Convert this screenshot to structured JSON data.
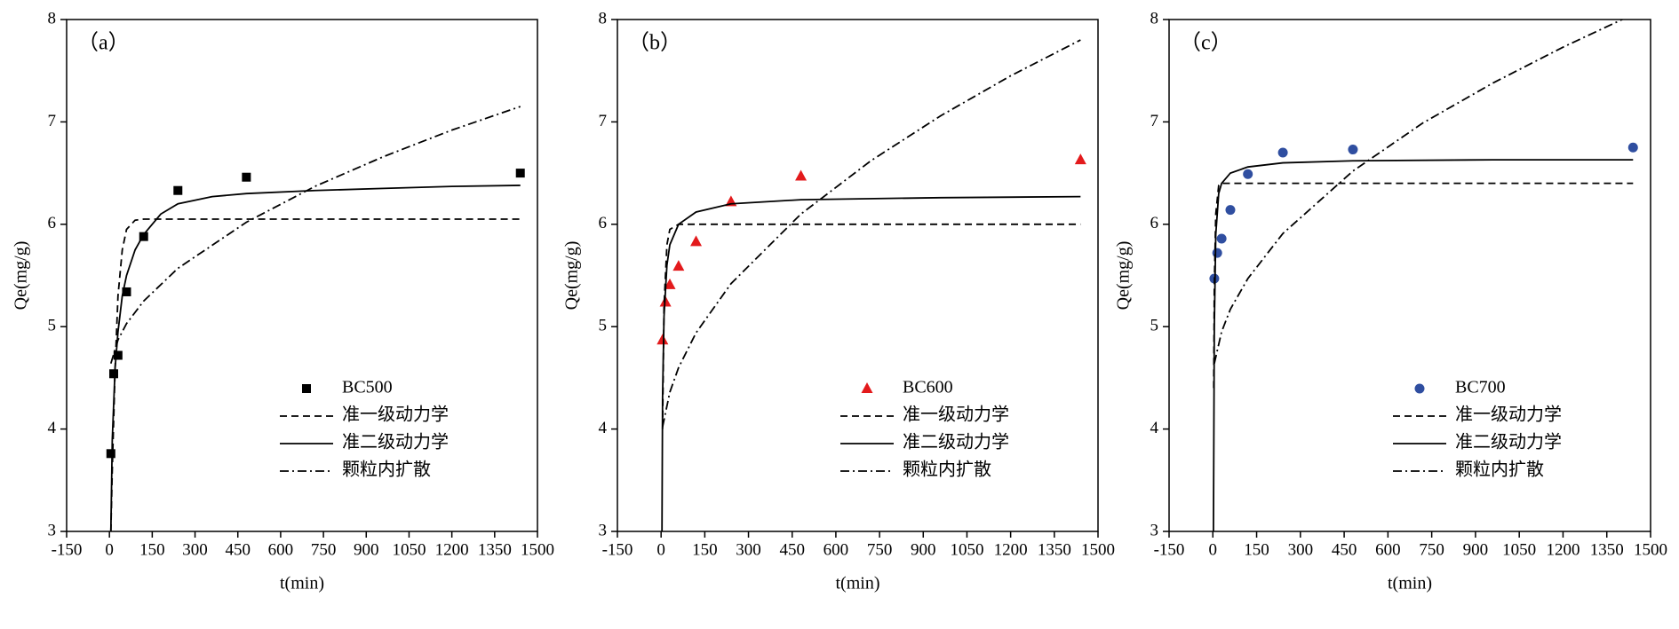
{
  "chart_data": [
    {
      "type": "scatter",
      "annotation": "（a）",
      "x_label": "t(min)",
      "y_label": "Qe(mg/g)",
      "xlim": [
        -150,
        1500
      ],
      "xticks": [
        -150,
        0,
        150,
        300,
        450,
        600,
        750,
        900,
        1050,
        1200,
        1350,
        1500
      ],
      "ylim": [
        3,
        8
      ],
      "yticks": [
        3,
        4,
        5,
        6,
        7,
        8
      ],
      "legend": "lower right",
      "series": [
        {
          "name": "BC500",
          "type": "scatter",
          "marker": "square",
          "color": "#000000",
          "x": [
            5,
            15,
            30,
            60,
            120,
            240,
            480,
            1440
          ],
          "values": [
            3.76,
            4.54,
            4.72,
            5.34,
            5.88,
            6.33,
            6.46,
            6.5
          ]
        },
        {
          "name": "准一级动力学",
          "type": "line",
          "dash": "dashed",
          "color": "#000000",
          "x": [
            5,
            10,
            20,
            30,
            45,
            60,
            90,
            120,
            480,
            960,
            1440
          ],
          "values": [
            3.0,
            3.6,
            4.6,
            5.3,
            5.75,
            5.95,
            6.04,
            6.05,
            6.05,
            6.05,
            6.05
          ]
        },
        {
          "name": "准二级动力学",
          "type": "line",
          "dash": "solid",
          "color": "#000000",
          "x": [
            5,
            10,
            20,
            30,
            45,
            60,
            90,
            120,
            180,
            240,
            360,
            480,
            720,
            960,
            1200,
            1440
          ],
          "values": [
            3.0,
            3.9,
            4.6,
            4.95,
            5.3,
            5.5,
            5.75,
            5.9,
            6.1,
            6.2,
            6.27,
            6.3,
            6.33,
            6.35,
            6.37,
            6.38
          ]
        },
        {
          "name": "颗粒内扩散",
          "type": "line",
          "dash": "dashdot",
          "color": "#000000",
          "x": [
            5,
            30,
            60,
            120,
            240,
            480,
            720,
            960,
            1200,
            1440
          ],
          "values": [
            4.64,
            4.87,
            5.03,
            5.25,
            5.57,
            6.02,
            6.37,
            6.66,
            6.92,
            7.15
          ]
        }
      ]
    },
    {
      "type": "scatter",
      "annotation": "（b）",
      "x_label": "t(min)",
      "y_label": "Qe(mg/g)",
      "xlim": [
        -150,
        1500
      ],
      "xticks": [
        -150,
        0,
        150,
        300,
        450,
        600,
        750,
        900,
        1050,
        1200,
        1350,
        1500
      ],
      "ylim": [
        3,
        8
      ],
      "yticks": [
        3,
        4,
        5,
        6,
        7,
        8
      ],
      "legend": "lower right",
      "series": [
        {
          "name": "BC600",
          "type": "scatter",
          "marker": "triangle",
          "color": "#e31a1c",
          "x": [
            5,
            15,
            30,
            60,
            120,
            240,
            480,
            1440
          ],
          "values": [
            4.87,
            5.24,
            5.41,
            5.59,
            5.83,
            6.22,
            6.47,
            6.63
          ]
        },
        {
          "name": "准一级动力学",
          "type": "line",
          "dash": "dashed",
          "color": "#000000",
          "x": [
            5,
            10,
            20,
            30,
            60,
            120,
            480,
            960,
            1440
          ],
          "values": [
            4.0,
            5.2,
            5.8,
            5.95,
            6.0,
            6.0,
            6.0,
            6.0,
            6.0
          ]
        },
        {
          "name": "准二级动力学",
          "type": "line",
          "dash": "solid",
          "color": "#000000",
          "x": [
            3,
            5,
            10,
            20,
            30,
            60,
            120,
            240,
            480,
            960,
            1440
          ],
          "values": [
            3.0,
            4.3,
            5.1,
            5.6,
            5.8,
            6.0,
            6.12,
            6.2,
            6.24,
            6.26,
            6.27
          ]
        },
        {
          "name": "颗粒内扩散",
          "type": "line",
          "dash": "dashdot",
          "color": "#000000",
          "x": [
            5,
            30,
            60,
            120,
            240,
            480,
            720,
            960,
            1200,
            1440
          ],
          "values": [
            4.02,
            4.36,
            4.6,
            4.94,
            5.42,
            6.1,
            6.62,
            7.06,
            7.45,
            7.8
          ]
        }
      ]
    },
    {
      "type": "scatter",
      "annotation": "（c）",
      "x_label": "t(min)",
      "y_label": "Qe(mg/g)",
      "xlim": [
        -150,
        1500
      ],
      "xticks": [
        -150,
        0,
        150,
        300,
        450,
        600,
        750,
        900,
        1050,
        1200,
        1350,
        1500
      ],
      "ylim": [
        3,
        8
      ],
      "yticks": [
        3,
        4,
        5,
        6,
        7,
        8
      ],
      "legend": "lower right",
      "series": [
        {
          "name": "BC700",
          "type": "scatter",
          "marker": "circle",
          "color": "#2f4ea0",
          "x": [
            5,
            15,
            30,
            60,
            120,
            240,
            480,
            1440
          ],
          "values": [
            5.47,
            5.72,
            5.86,
            6.14,
            6.49,
            6.7,
            6.73,
            6.75
          ]
        },
        {
          "name": "准一级动力学",
          "type": "line",
          "dash": "dashed",
          "color": "#000000",
          "x": [
            3,
            5,
            10,
            20,
            30,
            60,
            1440
          ],
          "values": [
            4.4,
            5.4,
            6.1,
            6.38,
            6.4,
            6.4,
            6.4
          ]
        },
        {
          "name": "准二级动力学",
          "type": "line",
          "dash": "solid",
          "color": "#000000",
          "x": [
            2,
            5,
            10,
            20,
            30,
            60,
            120,
            240,
            480,
            960,
            1440
          ],
          "values": [
            3.0,
            5.0,
            5.9,
            6.3,
            6.4,
            6.5,
            6.56,
            6.6,
            6.62,
            6.63,
            6.63
          ]
        },
        {
          "name": "颗粒内扩散",
          "type": "line",
          "dash": "dashdot",
          "color": "#000000",
          "x": [
            5,
            30,
            60,
            120,
            240,
            480,
            720,
            960,
            1200,
            1440
          ],
          "values": [
            4.64,
            4.95,
            5.17,
            5.47,
            5.91,
            6.52,
            6.99,
            7.38,
            7.73,
            8.05
          ]
        }
      ]
    }
  ]
}
